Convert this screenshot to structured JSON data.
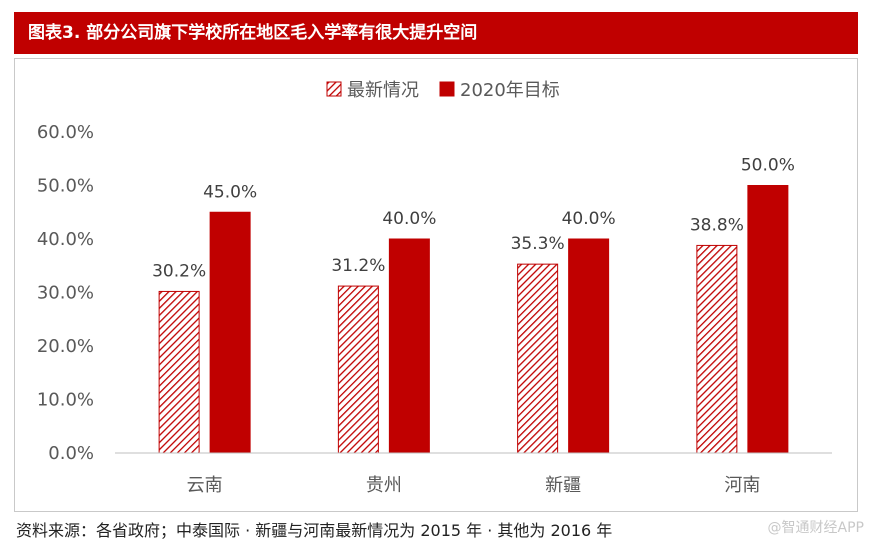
{
  "header": {
    "title": "图表3. 部分公司旗下学校所在地区毛入学率有很大提升空间"
  },
  "chart_data": {
    "type": "bar",
    "categories": [
      "云南",
      "贵州",
      "新疆",
      "河南"
    ],
    "series": [
      {
        "name": "最新情况",
        "values": [
          30.2,
          31.2,
          35.3,
          38.8
        ],
        "labels": [
          "30.2%",
          "31.2%",
          "35.3%",
          "38.8%"
        ],
        "color": "#c00000",
        "pattern": "diagonal-hatch"
      },
      {
        "name": "2020年目标",
        "values": [
          45.0,
          40.0,
          40.0,
          50.0
        ],
        "labels": [
          "45.0%",
          "40.0%",
          "40.0%",
          "50.0%"
        ],
        "color": "#c00000",
        "pattern": "solid"
      }
    ],
    "yticks": [
      "0.0%",
      "10.0%",
      "20.0%",
      "30.0%",
      "40.0%",
      "50.0%",
      "60.0%"
    ],
    "ylim": [
      0,
      60
    ],
    "legend_position": "top-center",
    "grid": false
  },
  "footer": {
    "source": "资料来源：各省政府；中泰国际 · 新疆与河南最新情况为 2015 年 · 其他为 2016 年",
    "watermark": "@智通财经APP"
  }
}
